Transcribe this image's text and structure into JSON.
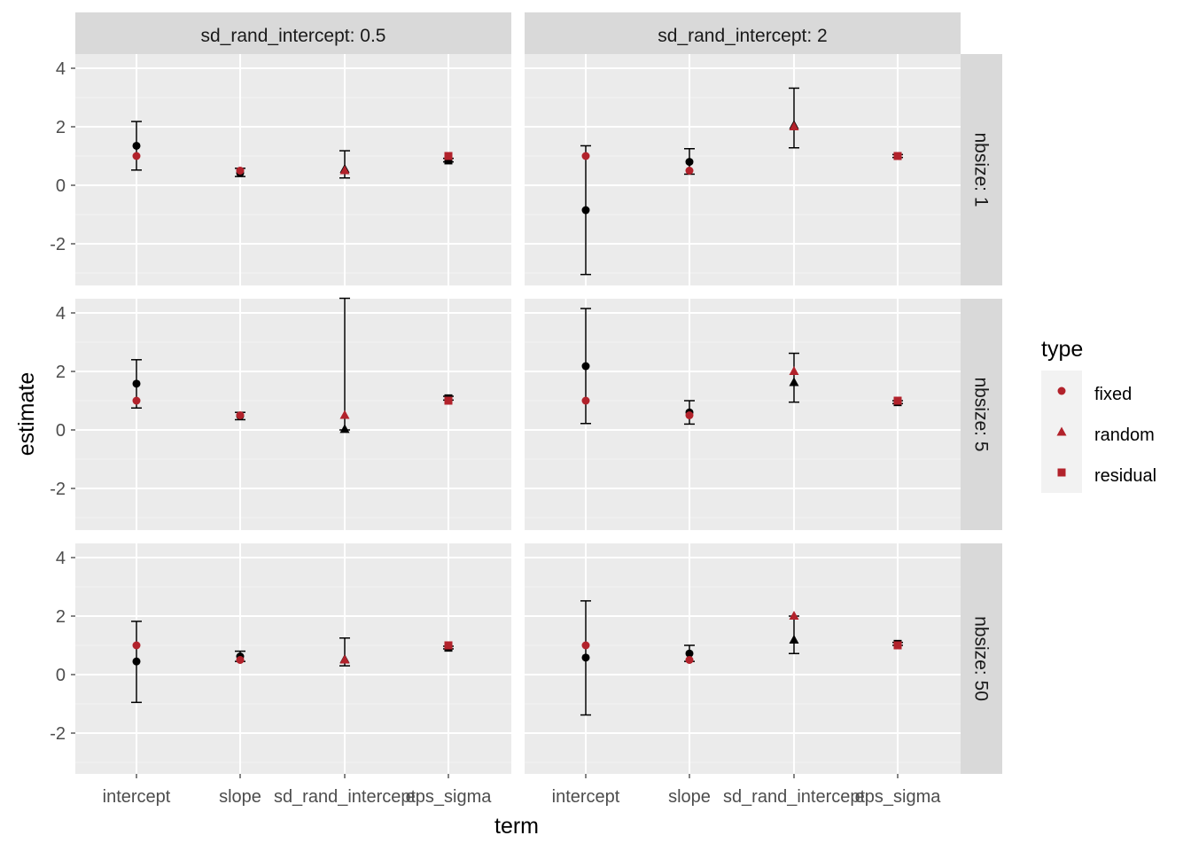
{
  "chart_data": {
    "type": "scatter",
    "subtype": "faceted point-range (ggplot2 facet_grid)",
    "xlabel": "term",
    "ylabel": "estimate",
    "x_categories": [
      "intercept",
      "slope",
      "sd_rand_intercept",
      "eps_sigma"
    ],
    "ylim": [
      -3.3,
      4.6
    ],
    "y_ticks": [
      -2,
      0,
      2,
      4
    ],
    "y_tick_labels": [
      "-2",
      "0",
      "2",
      "4"
    ],
    "grid": true,
    "legend": {
      "title": "type",
      "position": "right",
      "entries": [
        {
          "label": "fixed",
          "shape": "circle"
        },
        {
          "label": "random",
          "shape": "triangle"
        },
        {
          "label": "residual",
          "shape": "square"
        }
      ]
    },
    "colors": {
      "true_value": "#B2222B",
      "estimate": "#000000",
      "panel_bg": "#EBEBEB",
      "strip_bg": "#D9D9D9",
      "grid_major": "#FFFFFF",
      "grid_minor": "#F3F3F3"
    },
    "col_facets": [
      "sd_rand_intercept: 0.5",
      "sd_rand_intercept: 2"
    ],
    "row_facets": [
      "nbsize: 1",
      "nbsize: 5",
      "nbsize: 50"
    ],
    "term_shapes": {
      "intercept": "circle",
      "slope": "circle",
      "sd_rand_intercept": "triangle",
      "eps_sigma": "square"
    },
    "panels": [
      {
        "row": "nbsize: 1",
        "col": "sd_rand_intercept: 0.5",
        "points": [
          {
            "term": "intercept",
            "estimate": 1.35,
            "lower": 0.52,
            "upper": 2.18,
            "true_value": 1.0
          },
          {
            "term": "slope",
            "estimate": 0.42,
            "lower": 0.3,
            "upper": 0.58,
            "true_value": 0.5
          },
          {
            "term": "sd_rand_intercept",
            "estimate": 0.55,
            "lower": 0.25,
            "upper": 1.18,
            "true_value": 0.5
          },
          {
            "term": "eps_sigma",
            "estimate": 0.85,
            "lower": 0.8,
            "upper": 0.92,
            "true_value": 1.0
          }
        ]
      },
      {
        "row": "nbsize: 1",
        "col": "sd_rand_intercept: 2",
        "points": [
          {
            "term": "intercept",
            "estimate": -0.85,
            "lower": -3.05,
            "upper": 1.35,
            "true_value": 1.0
          },
          {
            "term": "slope",
            "estimate": 0.8,
            "lower": 0.38,
            "upper": 1.25,
            "true_value": 0.5
          },
          {
            "term": "sd_rand_intercept",
            "estimate": 2.05,
            "lower": 1.28,
            "upper": 3.32,
            "true_value": 2.0
          },
          {
            "term": "eps_sigma",
            "estimate": 1.0,
            "lower": 0.95,
            "upper": 1.05,
            "true_value": 1.0
          }
        ]
      },
      {
        "row": "nbsize: 5",
        "col": "sd_rand_intercept: 0.5",
        "points": [
          {
            "term": "intercept",
            "estimate": 1.58,
            "lower": 0.75,
            "upper": 2.4,
            "true_value": 1.0
          },
          {
            "term": "slope",
            "estimate": 0.48,
            "lower": 0.35,
            "upper": 0.6,
            "true_value": 0.5
          },
          {
            "term": "sd_rand_intercept",
            "estimate": 0.02,
            "lower": 0.0,
            "upper": 4.5,
            "true_value": 0.5
          },
          {
            "term": "eps_sigma",
            "estimate": 1.08,
            "lower": 1.02,
            "upper": 1.15,
            "true_value": 1.0
          }
        ]
      },
      {
        "row": "nbsize: 5",
        "col": "sd_rand_intercept: 2",
        "points": [
          {
            "term": "intercept",
            "estimate": 2.18,
            "lower": 0.22,
            "upper": 4.15,
            "true_value": 1.0
          },
          {
            "term": "slope",
            "estimate": 0.6,
            "lower": 0.2,
            "upper": 1.0,
            "true_value": 0.5
          },
          {
            "term": "sd_rand_intercept",
            "estimate": 1.62,
            "lower": 0.95,
            "upper": 2.62,
            "true_value": 2.0
          },
          {
            "term": "eps_sigma",
            "estimate": 0.95,
            "lower": 0.9,
            "upper": 1.0,
            "true_value": 1.0
          }
        ]
      },
      {
        "row": "nbsize: 50",
        "col": "sd_rand_intercept: 0.5",
        "points": [
          {
            "term": "intercept",
            "estimate": 0.45,
            "lower": -0.95,
            "upper": 1.82,
            "true_value": 1.0
          },
          {
            "term": "slope",
            "estimate": 0.62,
            "lower": 0.45,
            "upper": 0.8,
            "true_value": 0.5
          },
          {
            "term": "sd_rand_intercept",
            "estimate": 0.52,
            "lower": 0.3,
            "upper": 1.25,
            "true_value": 0.5
          },
          {
            "term": "eps_sigma",
            "estimate": 0.92,
            "lower": 0.88,
            "upper": 0.97,
            "true_value": 1.0
          }
        ]
      },
      {
        "row": "nbsize: 50",
        "col": "sd_rand_intercept: 2",
        "points": [
          {
            "term": "intercept",
            "estimate": 0.58,
            "lower": -1.38,
            "upper": 2.52,
            "true_value": 1.0
          },
          {
            "term": "slope",
            "estimate": 0.72,
            "lower": 0.45,
            "upper": 1.0,
            "true_value": 0.5
          },
          {
            "term": "sd_rand_intercept",
            "estimate": 1.18,
            "lower": 0.72,
            "upper": 2.0,
            "true_value": 2.0
          },
          {
            "term": "eps_sigma",
            "estimate": 1.05,
            "lower": 1.0,
            "upper": 1.1,
            "true_value": 1.0
          }
        ]
      }
    ]
  }
}
